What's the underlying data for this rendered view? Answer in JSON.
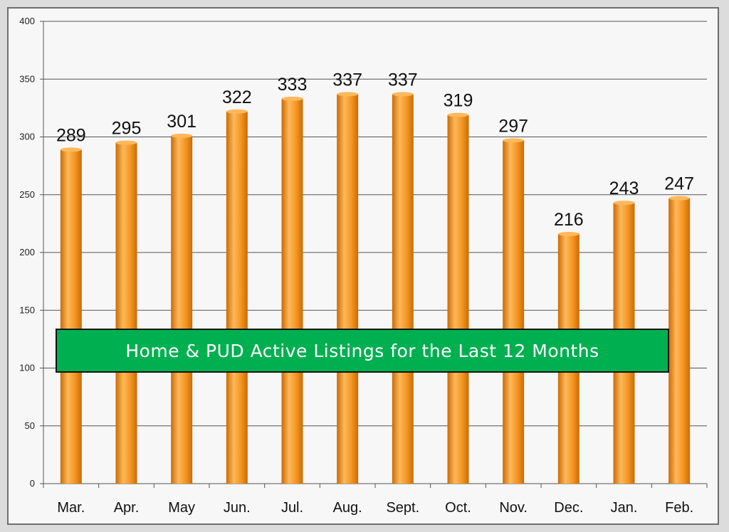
{
  "colors": {
    "bar": "#f39420",
    "bar_highlight": "#ffb85a",
    "bar_shadow": "#c96c05",
    "grid": "#555555",
    "title_box": "#00b050",
    "title_text": "#ffffff"
  },
  "chart_data": {
    "type": "bar",
    "title": "Home & PUD Active Listings for the Last 12 Months",
    "categories": [
      "Mar.",
      "Apr.",
      "May",
      "Jun.",
      "Jul.",
      "Aug.",
      "Sept.",
      "Oct.",
      "Nov.",
      "Dec.",
      "Jan.",
      "Feb."
    ],
    "values": [
      289,
      295,
      301,
      322,
      333,
      337,
      337,
      319,
      297,
      216,
      243,
      247
    ],
    "ylim": [
      0,
      400
    ],
    "yticks": [
      0,
      50,
      100,
      150,
      200,
      250,
      300,
      350,
      400
    ],
    "grid": true,
    "legend": "none",
    "data_labels": true
  }
}
